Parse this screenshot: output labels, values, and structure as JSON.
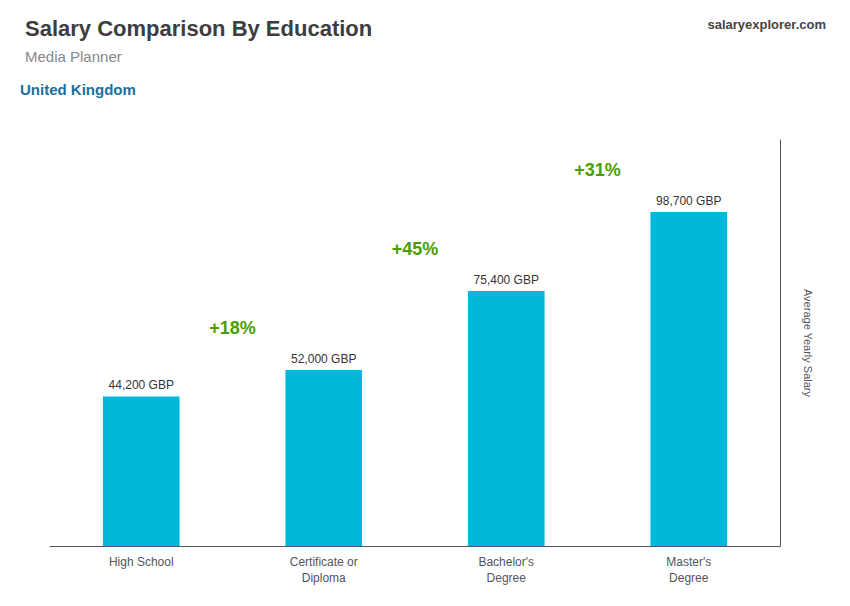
{
  "chart_data": {
    "type": "bar",
    "title": "Salary Comparison By Education",
    "subtitle": "Media Planner",
    "ylabel": "Average Yearly Salary",
    "categories": [
      "High School",
      "Certificate or\nDiploma",
      "Bachelor's\nDegree",
      "Master's\nDegree"
    ],
    "values": [
      44200,
      52000,
      75400,
      98700
    ],
    "value_labels": [
      "44,200 GBP",
      "52,000 GBP",
      "75,400 GBP",
      "98,700 GBP"
    ],
    "data_labels": true,
    "color": "#00b8d9",
    "ylim": [
      0,
      120000
    ],
    "grid": false,
    "tick_labels": "x",
    "annotations": [
      "United Kingdom",
      "salaryexplorer.com",
      "+18%",
      "+45%",
      "+31%"
    ]
  }
}
